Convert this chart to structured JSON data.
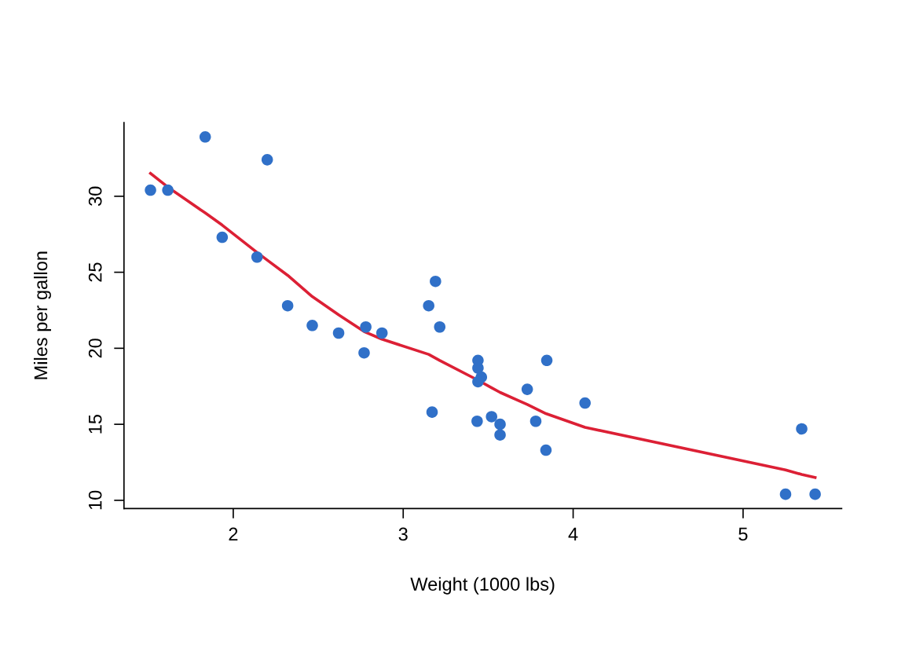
{
  "chart_data": {
    "type": "scatter",
    "xlabel": "Weight (1000 lbs)",
    "ylabel": "Miles per gallon",
    "xlim": [
      1.357,
      5.58
    ],
    "ylim": [
      9.46,
      34.84
    ],
    "xticks": [
      2,
      3,
      4,
      5
    ],
    "yticks": [
      10,
      15,
      20,
      25,
      30
    ],
    "grid": false,
    "legend": false,
    "marker": "circle",
    "series": [
      {
        "color": "#3070c8",
        "x": [
          2.62,
          2.875,
          2.32,
          3.215,
          3.44,
          3.46,
          3.57,
          3.19,
          3.15,
          3.44,
          3.44,
          4.07,
          3.73,
          3.78,
          5.25,
          5.424,
          5.345,
          2.2,
          1.615,
          1.835,
          2.465,
          3.52,
          3.435,
          3.84,
          3.845,
          1.935,
          2.14,
          1.513,
          3.17,
          2.77,
          3.57,
          2.78
        ],
        "values": [
          21.0,
          21.0,
          22.8,
          21.4,
          18.7,
          18.1,
          14.3,
          24.4,
          22.8,
          19.2,
          17.8,
          16.4,
          17.3,
          15.2,
          10.4,
          10.4,
          14.7,
          32.4,
          30.4,
          33.9,
          21.5,
          15.5,
          15.2,
          13.3,
          19.2,
          27.3,
          26.0,
          30.4,
          15.8,
          19.7,
          15.0,
          21.4
        ]
      },
      {
        "type": "line",
        "marker": "none",
        "color": "#dc2035",
        "line_style": "solid",
        "x": [
          1.513,
          1.615,
          1.835,
          1.935,
          2.14,
          2.2,
          2.32,
          2.465,
          2.62,
          2.77,
          2.875,
          3.15,
          3.215,
          3.44,
          3.52,
          3.57,
          3.73,
          3.84,
          4.07,
          5.25,
          5.345,
          5.424
        ],
        "values": [
          31.5,
          30.6,
          28.9,
          28.1,
          26.3,
          25.8,
          24.8,
          23.4,
          22.2,
          21.1,
          20.6,
          19.6,
          19.2,
          17.9,
          17.4,
          17.1,
          16.3,
          15.7,
          14.8,
          12.0,
          11.7,
          11.5
        ]
      }
    ]
  }
}
